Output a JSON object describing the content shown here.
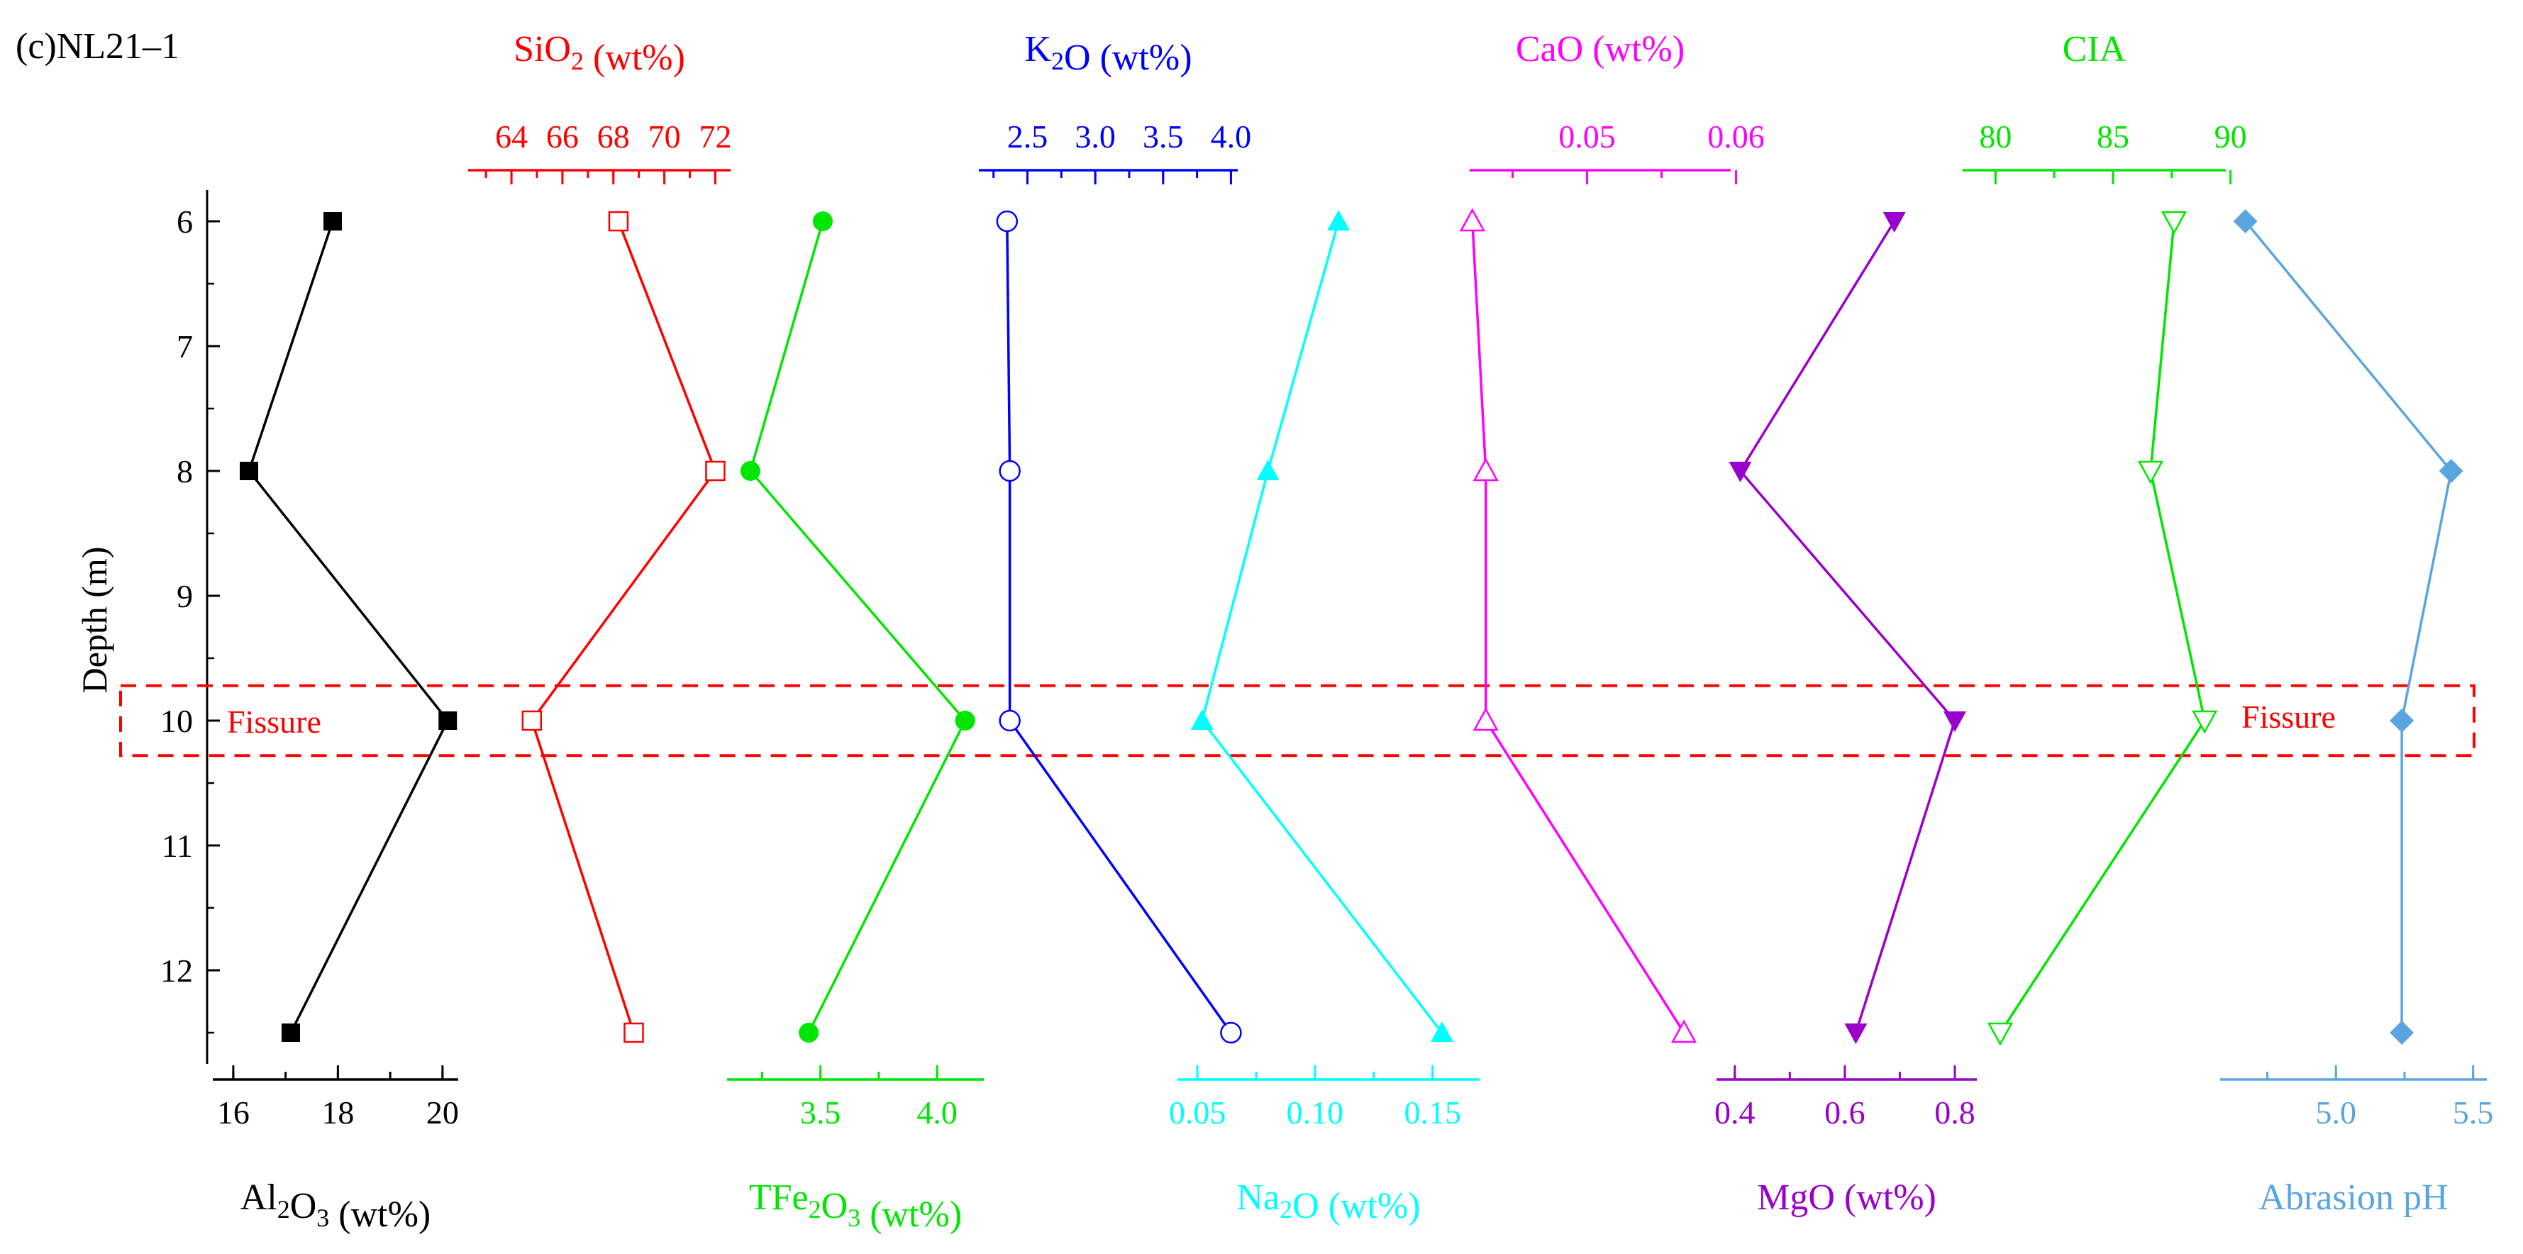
{
  "panel_label": "(c)NL21–1",
  "annotation": "Fissure",
  "chart_data": {
    "type": "line",
    "depth_axis": {
      "label": "Depth (m)",
      "ticks": [
        6,
        7,
        8,
        9,
        10,
        11,
        12
      ],
      "range": [
        5.75,
        12.75
      ],
      "inverted": true
    },
    "depths": [
      6,
      8,
      10,
      12.5
    ],
    "fissure_band": [
      9.72,
      10.28
    ],
    "series": [
      {
        "name": "Al2O3 (wt%)",
        "base": "Al",
        "sub": "2",
        "mid": "O",
        "sub2": "3",
        "tail": " (wt%)",
        "axis_pos": "bottom",
        "color": "#000000",
        "marker": "square-filled",
        "values": [
          17.9,
          16.3,
          20.1,
          17.1
        ],
        "ticks": [
          16,
          18,
          20
        ],
        "range": [
          15.5,
          20.3
        ]
      },
      {
        "name": "SiO2 (wt%)",
        "base": "SiO",
        "sub": "2",
        "mid": "",
        "sub2": "",
        "tail": " (wt%)",
        "axis_pos": "top",
        "color": "#ff0000",
        "marker": "square-open",
        "values": [
          68.2,
          72.0,
          64.8,
          68.8
        ],
        "ticks": [
          64,
          66,
          68,
          70,
          72
        ],
        "range": [
          62.3,
          72.6
        ]
      },
      {
        "name": "TFe2O3 (wt%)",
        "base": "TFe",
        "sub": "2",
        "mid": "O",
        "sub2": "3",
        "tail": " (wt%)",
        "axis_pos": "bottom",
        "color": "#00e600",
        "marker": "circle-filled",
        "values": [
          3.51,
          3.2,
          4.12,
          3.45
        ],
        "ticks": [
          3.5,
          4.0
        ],
        "range": [
          3.1,
          4.2
        ]
      },
      {
        "name": "K2O (wt%)",
        "base": "K",
        "sub": "2",
        "mid": "O",
        "sub2": "",
        "tail": " (wt%)",
        "axis_pos": "top",
        "color": "#0000ff",
        "marker": "circle-open",
        "values": [
          2.35,
          2.37,
          2.37,
          4.0
        ],
        "ticks": [
          2.5,
          3.0,
          3.5,
          4.0
        ],
        "range": [
          2.1,
          4.05
        ]
      },
      {
        "name": "Na2O (wt%)",
        "base": "Na",
        "sub": "2",
        "mid": "O",
        "sub2": "",
        "tail": " (wt%)",
        "axis_pos": "bottom",
        "color": "#00ffff",
        "marker": "triangle-up-filled",
        "values": [
          0.11,
          0.08,
          0.052,
          0.154
        ],
        "ticks": [
          0.05,
          0.1,
          0.15
        ],
        "range": [
          0.04,
          0.17
        ]
      },
      {
        "name": "CaO (wt%)",
        "base": "CaO",
        "sub": "",
        "mid": "",
        "sub2": "",
        "tail": " (wt%)",
        "axis_pos": "top",
        "color": "#ff00ff",
        "marker": "triangle-up-open",
        "values": [
          0.0423,
          0.0432,
          0.0432,
          0.0565
        ],
        "ticks": [
          0.05,
          0.06
        ],
        "range": [
          0.0405,
          0.0605
        ]
      },
      {
        "name": "MgO (wt%)",
        "base": "MgO",
        "sub": "",
        "mid": "",
        "sub2": "",
        "tail": " (wt%)",
        "axis_pos": "bottom",
        "color": "#9900cc",
        "marker": "triangle-down-filled",
        "values": [
          0.69,
          0.41,
          0.8,
          0.62
        ],
        "ticks": [
          0.4,
          0.6,
          0.8
        ],
        "range": [
          0.35,
          0.84
        ]
      },
      {
        "name": "CIA",
        "base": "CIA",
        "sub": "",
        "mid": "",
        "sub2": "",
        "tail": "",
        "axis_pos": "top",
        "color": "#00e600",
        "marker": "triangle-down-open",
        "values": [
          87.6,
          86.6,
          88.9,
          80.2
        ],
        "ticks": [
          80,
          85,
          90
        ],
        "range": [
          78.3,
          89.8
        ]
      },
      {
        "name": "Abrasion pH",
        "base": "Abrasion pH",
        "sub": "",
        "mid": "",
        "sub2": "",
        "tail": "",
        "axis_pos": "bottom",
        "color": "#5aa5e0",
        "marker": "diamond-filled",
        "values": [
          4.67,
          5.42,
          5.24,
          5.24
        ],
        "ticks": [
          5.0,
          5.5
        ],
        "range": [
          4.57,
          5.55
        ]
      }
    ]
  }
}
